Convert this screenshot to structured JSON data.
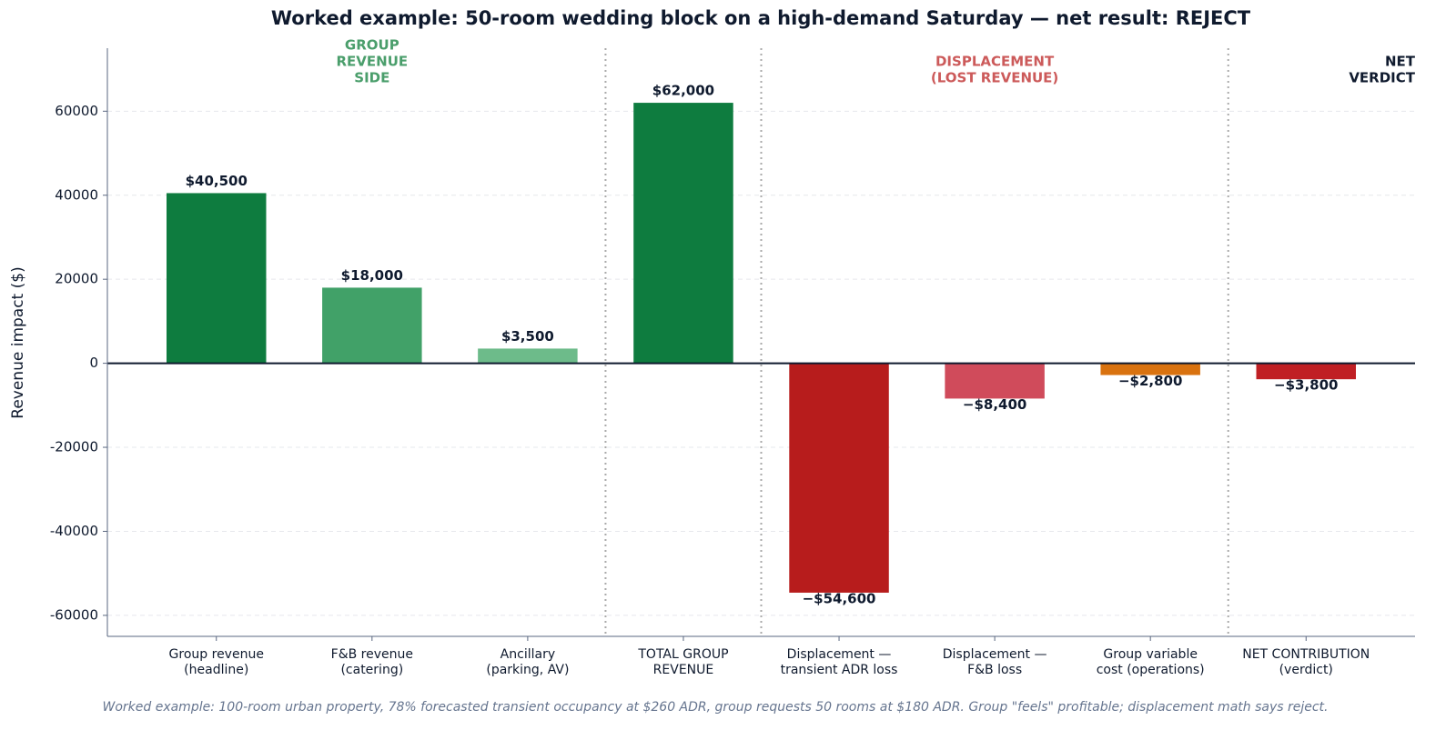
{
  "chart_data": {
    "type": "bar",
    "title": "Worked example: 50-room wedding block on a high-demand Saturday — net result: REJECT",
    "ylabel": "Revenue impact ($)",
    "footnote": "Worked example: 100-room urban property, 78% forecasted transient occupancy at $260 ADR, group requests 50 rooms at $180 ADR. Group \"feels\" profitable; displacement math says reject.",
    "categories": [
      [
        "Group revenue",
        "(headline)"
      ],
      [
        "F&B revenue",
        "(catering)"
      ],
      [
        "Ancillary",
        "(parking, AV)"
      ],
      [
        "TOTAL GROUP",
        "REVENUE"
      ],
      [
        "Displacement —",
        "transient ADR loss"
      ],
      [
        "Displacement —",
        "F&B loss"
      ],
      [
        "Group variable",
        "cost (operations)"
      ],
      [
        "NET CONTRIBUTION",
        "(verdict)"
      ]
    ],
    "values": [
      40500,
      18000,
      3500,
      62000,
      -54600,
      -8400,
      -2800,
      -3800
    ],
    "value_labels": [
      "$40,500",
      "$18,000",
      "$3,500",
      "$62,000",
      "−$54,600",
      "−$8,400",
      "−$2,800",
      "−$3,800"
    ],
    "colors": [
      "#0e7c3f",
      "#41a168",
      "#6dbb8a",
      "#0e7c3f",
      "#b71c1c",
      "#d04b5b",
      "#d9720f",
      "#c01f24"
    ],
    "annotations": [
      {
        "lines": [
          "GROUP",
          "REVENUE",
          "SIDE"
        ],
        "color": "#4a9e6b"
      },
      {
        "lines": [
          "DISPLACEMENT",
          "(LOST REVENUE)"
        ],
        "color": "#cc5a5a"
      },
      {
        "lines": [
          "NET",
          "VERDICT"
        ],
        "color": "#0f1a2e"
      }
    ],
    "ylim": [
      -65000,
      75000
    ],
    "yticks": [
      -60000,
      -40000,
      -20000,
      0,
      20000,
      40000,
      60000
    ],
    "grid": true
  }
}
